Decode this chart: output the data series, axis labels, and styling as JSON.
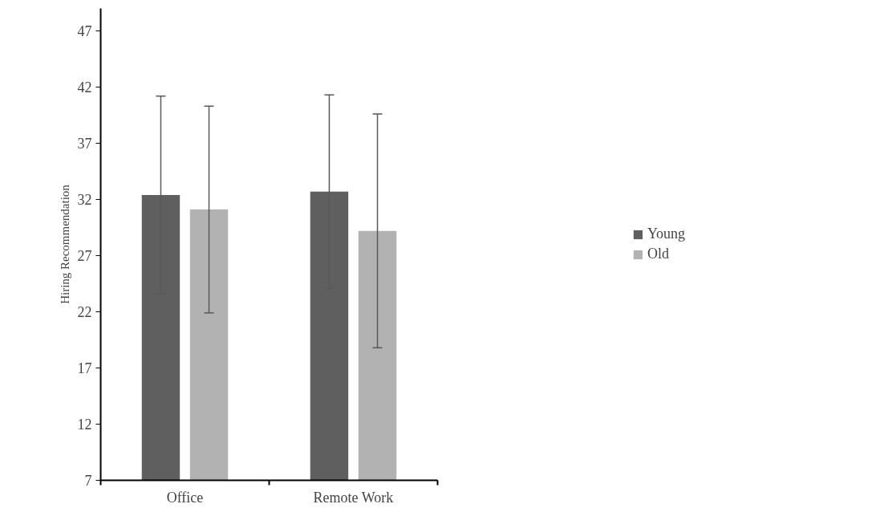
{
  "chart_data": {
    "type": "bar",
    "ylabel": "Hiring Recommendation",
    "categories": [
      "Office",
      "Remote Work"
    ],
    "series": [
      {
        "name": "Young",
        "color": "#5f5f5f",
        "values": [
          32.4,
          32.7
        ],
        "errors": [
          8.8,
          8.6
        ]
      },
      {
        "name": "Old",
        "color": "#b2b2b2",
        "values": [
          31.1,
          29.2
        ],
        "errors": [
          9.2,
          10.4
        ]
      }
    ],
    "ylim": [
      7,
      49
    ],
    "yticks": [
      7,
      12,
      17,
      22,
      27,
      32,
      37,
      42,
      47
    ],
    "grid": false,
    "legend": "right"
  }
}
